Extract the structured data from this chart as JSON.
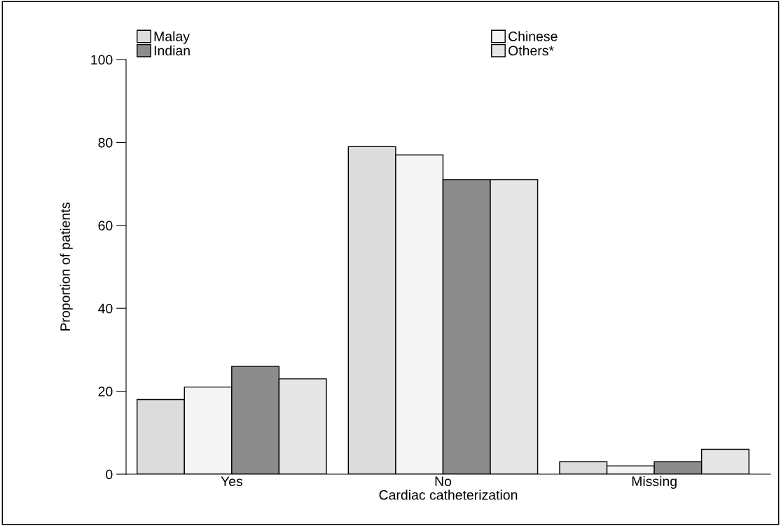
{
  "chart_data": {
    "type": "bar",
    "xlabel": "Cardiac catheterization",
    "ylabel": "Proportion of patients",
    "categories": [
      "Yes",
      "No",
      "Missing"
    ],
    "series": [
      {
        "name": "Malay",
        "color": "#dcdcdc",
        "values": [
          18,
          79,
          3
        ]
      },
      {
        "name": "Chinese",
        "color": "#f4f4f4",
        "values": [
          21,
          77,
          2
        ]
      },
      {
        "name": "Indian",
        "color": "#8c8c8c",
        "values": [
          26,
          71,
          3
        ]
      },
      {
        "name": "Others*",
        "color": "#e6e6e6",
        "values": [
          23,
          71,
          6
        ]
      }
    ],
    "ylim": [
      0,
      100
    ],
    "yticks": [
      0,
      20,
      40,
      60,
      80,
      100
    ],
    "grid": false,
    "legend": "top"
  }
}
